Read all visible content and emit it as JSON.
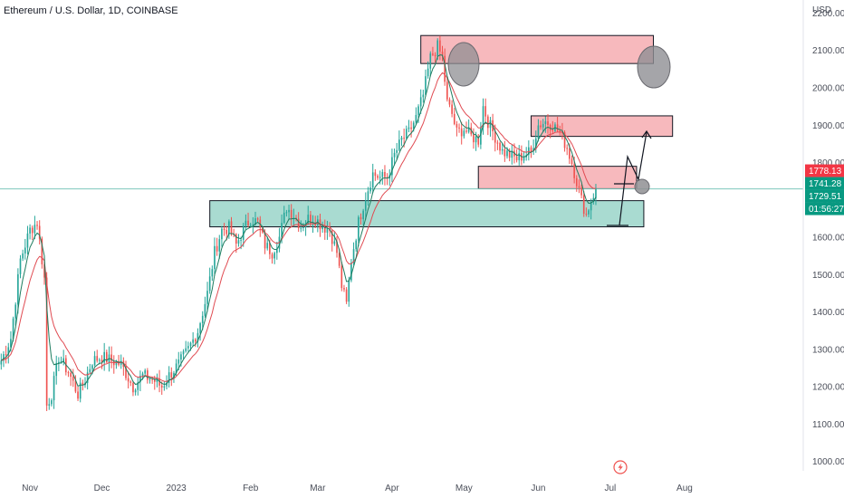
{
  "chart_data": {
    "type": "candlestick",
    "title": "Ethereum / U.S. Dollar, 1D, COINBASE",
    "currency": "USD",
    "y_ticks": [
      2200,
      2100,
      2000,
      1900,
      1800,
      1700,
      1600,
      1500,
      1400,
      1300,
      1200,
      1100,
      1000
    ],
    "y_tick_labels": [
      "2200.00",
      "2100.00",
      "2000.00",
      "1900.00",
      "1800.00",
      "1700.00",
      "1600.00",
      "1500.00",
      "1400.00",
      "1300.00",
      "1200.00",
      "1100.00",
      "1000.00"
    ],
    "ylim": [
      975,
      2235
    ],
    "x_ticks": [
      "Nov",
      "Dec",
      "2023",
      "Feb",
      "Mar",
      "Apr",
      "May",
      "Jun",
      "Jul",
      "Aug"
    ],
    "x_tick_index": [
      12,
      42,
      73,
      104,
      132,
      163,
      193,
      224,
      254,
      285
    ],
    "total_slots": 335,
    "price_badges": [
      {
        "label": "1778.13",
        "value": 1778.13,
        "color": "#f23645"
      },
      {
        "label": "1741.28",
        "value": 1741.28,
        "color": "#089981"
      },
      {
        "label": "1729.51",
        "value": 1729.51,
        "color": "#089981"
      },
      {
        "label": "01:56:27",
        "value": 1710,
        "color": "#089981"
      }
    ],
    "current_price": 1729.51,
    "up_color": "#26a69a",
    "down_color": "#ef5350",
    "ma_fast_color": "#1e7d60",
    "ma_slow_color": "#e04b52",
    "zones": [
      {
        "kind": "supply",
        "x0": 175,
        "x1": 272,
        "y0": 2065,
        "y1": 2140,
        "color": "#f7b9bd"
      },
      {
        "kind": "supply",
        "x0": 221,
        "x1": 280,
        "y0": 1870,
        "y1": 1925,
        "color": "#f7b9bd"
      },
      {
        "kind": "supply",
        "x0": 199,
        "x1": 265,
        "y0": 1730,
        "y1": 1790,
        "color": "#f7b9bd"
      },
      {
        "kind": "demand",
        "x0": 87,
        "x1": 268,
        "y0": 1628,
        "y1": 1698,
        "color": "#a9dbd1"
      }
    ],
    "anchors": [
      [
        0,
        1270
      ],
      [
        4,
        1330
      ],
      [
        8,
        1540
      ],
      [
        12,
        1620
      ],
      [
        15,
        1640
      ],
      [
        18,
        1490
      ],
      [
        19,
        1150
      ],
      [
        21,
        1180
      ],
      [
        24,
        1280
      ],
      [
        28,
        1240
      ],
      [
        32,
        1180
      ],
      [
        35,
        1220
      ],
      [
        38,
        1270
      ],
      [
        42,
        1280
      ],
      [
        46,
        1270
      ],
      [
        50,
        1260
      ],
      [
        55,
        1200
      ],
      [
        59,
        1230
      ],
      [
        63,
        1220
      ],
      [
        67,
        1200
      ],
      [
        70,
        1230
      ],
      [
        74,
        1260
      ],
      [
        78,
        1300
      ],
      [
        82,
        1350
      ],
      [
        86,
        1450
      ],
      [
        89,
        1560
      ],
      [
        92,
        1620
      ],
      [
        95,
        1625
      ],
      [
        98,
        1580
      ],
      [
        101,
        1620
      ],
      [
        104,
        1650
      ],
      [
        107,
        1640
      ],
      [
        110,
        1580
      ],
      [
        113,
        1560
      ],
      [
        116,
        1600
      ],
      [
        119,
        1680
      ],
      [
        122,
        1660
      ],
      [
        125,
        1630
      ],
      [
        128,
        1650
      ],
      [
        131,
        1650
      ],
      [
        134,
        1630
      ],
      [
        137,
        1620
      ],
      [
        140,
        1560
      ],
      [
        142,
        1470
      ],
      [
        144,
        1420
      ],
      [
        146,
        1540
      ],
      [
        149,
        1640
      ],
      [
        152,
        1710
      ],
      [
        155,
        1770
      ],
      [
        158,
        1760
      ],
      [
        161,
        1760
      ],
      [
        164,
        1820
      ],
      [
        167,
        1860
      ],
      [
        170,
        1880
      ],
      [
        173,
        1920
      ],
      [
        176,
        1980
      ],
      [
        179,
        2080
      ],
      [
        182,
        2110
      ],
      [
        184,
        2080
      ],
      [
        186,
        1960
      ],
      [
        188,
        1930
      ],
      [
        190,
        1880
      ],
      [
        193,
        1890
      ],
      [
        196,
        1870
      ],
      [
        199,
        1860
      ],
      [
        201,
        1950
      ],
      [
        203,
        1910
      ],
      [
        206,
        1870
      ],
      [
        209,
        1830
      ],
      [
        212,
        1820
      ],
      [
        215,
        1810
      ],
      [
        218,
        1820
      ],
      [
        221,
        1830
      ],
      [
        224,
        1900
      ],
      [
        227,
        1910
      ],
      [
        230,
        1900
      ],
      [
        233,
        1880
      ],
      [
        236,
        1840
      ],
      [
        238,
        1800
      ],
      [
        240,
        1750
      ],
      [
        242,
        1700
      ],
      [
        244,
        1660
      ],
      [
        246,
        1700
      ],
      [
        248,
        1729.51
      ]
    ]
  }
}
